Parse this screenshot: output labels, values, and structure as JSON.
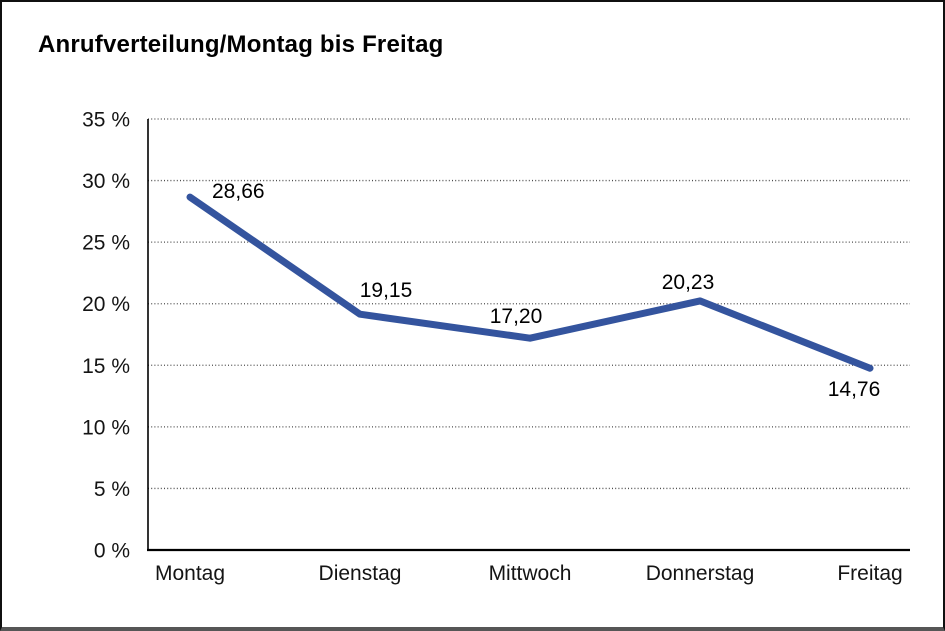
{
  "header": {
    "title": "Anrufverteilung/Montag bis Freitag"
  },
  "chart_data": {
    "type": "line",
    "title": "Anrufverteilung/Montag bis Freitag",
    "categories": [
      "Montag",
      "Dienstag",
      "Mittwoch",
      "Donnerstag",
      "Freitag"
    ],
    "series": [
      {
        "name": "Anrufverteilung",
        "values": [
          28.66,
          19.15,
          17.2,
          20.23,
          14.76
        ]
      }
    ],
    "value_labels": [
      "28,66",
      "19,15",
      "17,20",
      "20,23",
      "14,76"
    ],
    "xlabel": "",
    "ylabel": "",
    "ylim": [
      0,
      35
    ],
    "y_tick_values": [
      0,
      5,
      10,
      15,
      20,
      25,
      30,
      35
    ],
    "y_tick_labels": [
      "0 %",
      "5 %",
      "10 %",
      "15 %",
      "20 %",
      "25 %",
      "30 %",
      "35 %"
    ],
    "grid": "horizontal-dotted",
    "legend_position": "none",
    "colors": {
      "line": "#34549E",
      "axis": "#000000",
      "grid": "#4d4d4d",
      "text": "#141414",
      "background": "#ffffff"
    }
  }
}
